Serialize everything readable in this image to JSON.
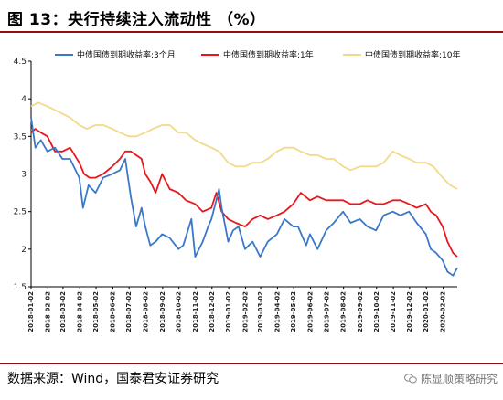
{
  "header": {
    "title": "图 13：央行持续注入流动性 （%）"
  },
  "footer": {
    "source": "数据来源：Wind，国泰君安证券研究",
    "watermark": "陈显顺策略研究"
  },
  "chart_data": {
    "type": "line",
    "title": "",
    "xlabel": "",
    "ylabel": "",
    "ylim": [
      1.5,
      4.5
    ],
    "yticks": [
      1.5,
      2,
      2.5,
      3,
      3.5,
      4,
      4.5
    ],
    "ytick_labels": [
      "1.5",
      "2",
      "2.5",
      "3",
      "3.5",
      "4",
      "4.5"
    ],
    "x_range": [
      "2018-01-02",
      "2020-02-28"
    ],
    "xtick_labels": [
      "2018-01-02",
      "2018-02-02",
      "2018-03-02",
      "2018-04-02",
      "2018-05-02",
      "2018-06-02",
      "2018-07-02",
      "2018-08-02",
      "2018-09-02",
      "2018-10-02",
      "2018-11-02",
      "2018-12-02",
      "2019-01-02",
      "2019-02-02",
      "2019-03-02",
      "2019-04-02",
      "2019-05-02",
      "2019-06-02",
      "2019-07-02",
      "2019-08-02",
      "2019-09-02",
      "2019-10-02",
      "2019-11-02",
      "2019-12-02",
      "2020-01-02",
      "2020-02-02"
    ],
    "grid": false,
    "legend_position": "top",
    "series": [
      {
        "name": "中债国债到期收益率:3个月",
        "color": "#3a78c9",
        "x": [
          "2018-01-02",
          "2018-01-10",
          "2018-01-20",
          "2018-02-01",
          "2018-02-15",
          "2018-03-01",
          "2018-03-15",
          "2018-04-01",
          "2018-04-08",
          "2018-04-18",
          "2018-05-01",
          "2018-05-15",
          "2018-06-01",
          "2018-06-15",
          "2018-06-25",
          "2018-07-05",
          "2018-07-15",
          "2018-07-25",
          "2018-08-01",
          "2018-08-10",
          "2018-08-20",
          "2018-09-01",
          "2018-09-15",
          "2018-10-01",
          "2018-10-10",
          "2018-10-25",
          "2018-11-01",
          "2018-11-15",
          "2018-11-25",
          "2018-12-01",
          "2018-12-10",
          "2018-12-15",
          "2018-12-20",
          "2019-01-01",
          "2019-01-10",
          "2019-01-20",
          "2019-02-01",
          "2019-02-15",
          "2019-03-01",
          "2019-03-15",
          "2019-04-01",
          "2019-04-15",
          "2019-05-01",
          "2019-05-10",
          "2019-05-25",
          "2019-06-01",
          "2019-06-15",
          "2019-07-01",
          "2019-07-15",
          "2019-08-01",
          "2019-08-15",
          "2019-09-01",
          "2019-09-15",
          "2019-10-01",
          "2019-10-15",
          "2019-11-01",
          "2019-11-15",
          "2019-12-01",
          "2019-12-15",
          "2020-01-01",
          "2020-01-10",
          "2020-01-20",
          "2020-02-01",
          "2020-02-10",
          "2020-02-20",
          "2020-02-28"
        ],
        "values": [
          3.75,
          3.35,
          3.45,
          3.3,
          3.35,
          3.2,
          3.2,
          2.95,
          2.55,
          2.85,
          2.75,
          2.95,
          3.0,
          3.05,
          3.2,
          2.7,
          2.3,
          2.55,
          2.3,
          2.05,
          2.1,
          2.2,
          2.15,
          2.0,
          2.05,
          2.4,
          1.9,
          2.1,
          2.3,
          2.4,
          2.65,
          2.8,
          2.55,
          2.1,
          2.25,
          2.3,
          2.0,
          2.1,
          1.9,
          2.1,
          2.2,
          2.4,
          2.3,
          2.3,
          2.05,
          2.2,
          2.0,
          2.25,
          2.35,
          2.5,
          2.35,
          2.4,
          2.3,
          2.25,
          2.45,
          2.5,
          2.45,
          2.5,
          2.35,
          2.2,
          2.0,
          1.95,
          1.85,
          1.7,
          1.65,
          1.75
        ]
      },
      {
        "name": "中债国债到期收益率:1年",
        "color": "#e8161d",
        "x": [
          "2018-01-02",
          "2018-01-10",
          "2018-01-20",
          "2018-02-01",
          "2018-02-15",
          "2018-03-01",
          "2018-03-15",
          "2018-04-01",
          "2018-04-10",
          "2018-04-20",
          "2018-05-01",
          "2018-05-15",
          "2018-06-01",
          "2018-06-15",
          "2018-06-25",
          "2018-07-05",
          "2018-07-15",
          "2018-07-25",
          "2018-08-01",
          "2018-08-10",
          "2018-08-20",
          "2018-09-01",
          "2018-09-15",
          "2018-10-01",
          "2018-10-15",
          "2018-11-01",
          "2018-11-15",
          "2018-12-01",
          "2018-12-10",
          "2018-12-20",
          "2019-01-01",
          "2019-01-15",
          "2019-02-01",
          "2019-02-15",
          "2019-03-01",
          "2019-03-15",
          "2019-04-01",
          "2019-04-15",
          "2019-05-01",
          "2019-05-15",
          "2019-06-01",
          "2019-06-15",
          "2019-07-01",
          "2019-07-15",
          "2019-08-01",
          "2019-08-15",
          "2019-09-01",
          "2019-09-15",
          "2019-10-01",
          "2019-10-15",
          "2019-11-01",
          "2019-11-15",
          "2019-12-01",
          "2019-12-15",
          "2020-01-01",
          "2020-01-10",
          "2020-01-20",
          "2020-02-01",
          "2020-02-10",
          "2020-02-20",
          "2020-02-28"
        ],
        "values": [
          3.55,
          3.6,
          3.55,
          3.5,
          3.3,
          3.3,
          3.35,
          3.15,
          3.0,
          2.95,
          2.95,
          3.0,
          3.1,
          3.2,
          3.3,
          3.3,
          3.25,
          3.2,
          3.0,
          2.9,
          2.75,
          3.0,
          2.8,
          2.75,
          2.65,
          2.6,
          2.5,
          2.55,
          2.75,
          2.5,
          2.4,
          2.35,
          2.3,
          2.4,
          2.45,
          2.4,
          2.45,
          2.5,
          2.6,
          2.75,
          2.65,
          2.7,
          2.65,
          2.65,
          2.65,
          2.6,
          2.6,
          2.65,
          2.6,
          2.6,
          2.65,
          2.65,
          2.6,
          2.55,
          2.6,
          2.5,
          2.45,
          2.3,
          2.1,
          1.95,
          1.9
        ]
      },
      {
        "name": "中债国债到期收益率:10年",
        "color": "#f3d98a",
        "x": [
          "2018-01-02",
          "2018-01-15",
          "2018-02-01",
          "2018-02-15",
          "2018-03-01",
          "2018-03-15",
          "2018-04-01",
          "2018-04-15",
          "2018-05-01",
          "2018-05-15",
          "2018-06-01",
          "2018-06-15",
          "2018-07-01",
          "2018-07-15",
          "2018-08-01",
          "2018-08-15",
          "2018-09-01",
          "2018-09-15",
          "2018-10-01",
          "2018-10-15",
          "2018-11-01",
          "2018-11-15",
          "2018-12-01",
          "2018-12-15",
          "2019-01-01",
          "2019-01-15",
          "2019-02-01",
          "2019-02-15",
          "2019-03-01",
          "2019-03-15",
          "2019-04-01",
          "2019-04-15",
          "2019-05-01",
          "2019-05-15",
          "2019-06-01",
          "2019-06-15",
          "2019-07-01",
          "2019-07-15",
          "2019-08-01",
          "2019-08-15",
          "2019-09-01",
          "2019-09-15",
          "2019-10-01",
          "2019-10-15",
          "2019-11-01",
          "2019-11-15",
          "2019-12-01",
          "2019-12-15",
          "2020-01-01",
          "2020-01-15",
          "2020-02-01",
          "2020-02-15",
          "2020-02-28"
        ],
        "values": [
          3.9,
          3.95,
          3.9,
          3.85,
          3.8,
          3.75,
          3.65,
          3.6,
          3.65,
          3.65,
          3.6,
          3.55,
          3.5,
          3.5,
          3.55,
          3.6,
          3.65,
          3.65,
          3.55,
          3.55,
          3.45,
          3.4,
          3.35,
          3.3,
          3.15,
          3.1,
          3.1,
          3.15,
          3.15,
          3.2,
          3.3,
          3.35,
          3.35,
          3.3,
          3.25,
          3.25,
          3.2,
          3.2,
          3.1,
          3.05,
          3.1,
          3.1,
          3.1,
          3.15,
          3.3,
          3.25,
          3.2,
          3.15,
          3.15,
          3.1,
          2.95,
          2.85,
          2.8
        ]
      }
    ]
  }
}
